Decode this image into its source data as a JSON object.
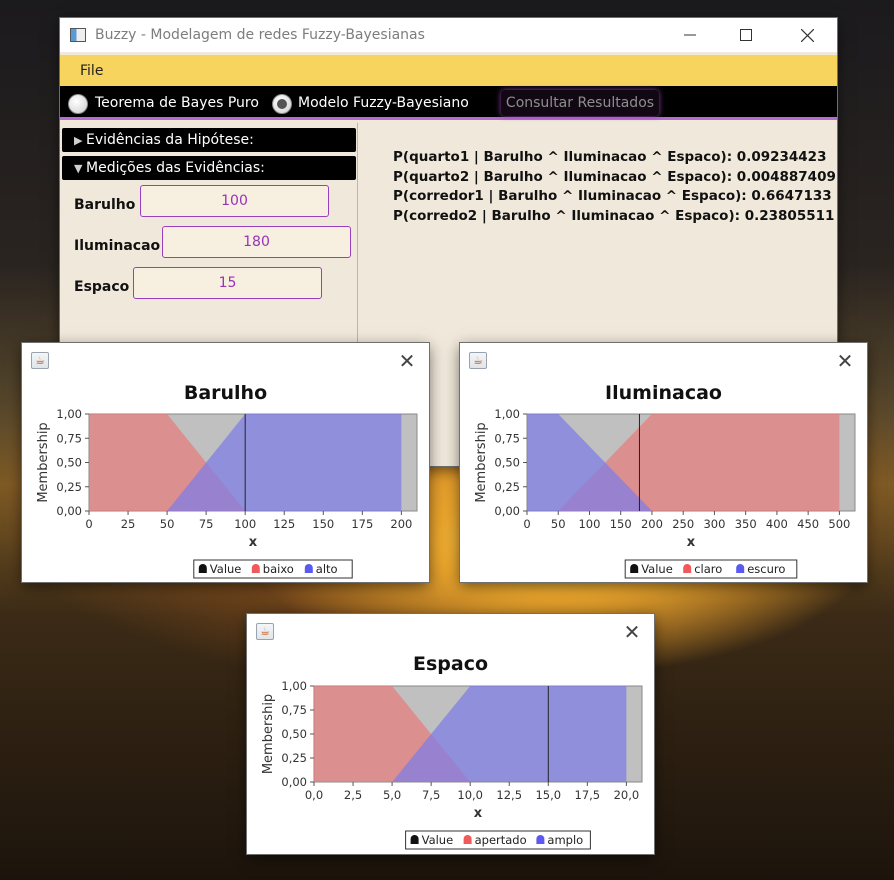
{
  "main_window": {
    "title": "Buzzy - Modelagem de redes Fuzzy-Bayesianas",
    "menu": {
      "file_label": "File"
    },
    "toolbar": {
      "radio_bayes_label": "Teorema de Bayes Puro",
      "radio_fuzzy_label": "Modelo Fuzzy-Bayesiano",
      "selected_mode": "Modelo Fuzzy-Bayesiano",
      "consult_button_label": "Consultar Resultados"
    },
    "accordion": {
      "hypothesis_label": "Evidências da Hipótese:",
      "measurements_label": "Medições das Evidências:"
    },
    "fields": [
      {
        "label": "Barulho",
        "value": "100"
      },
      {
        "label": "Iluminacao",
        "value": "180"
      },
      {
        "label": "Espaco",
        "value": "15"
      }
    ],
    "results": [
      "P(quarto1 | Barulho ^ Iluminacao ^ Espaco): 0.09234423",
      "P(quarto2 | Barulho ^ Iluminacao ^ Espaco): 0.004887409",
      "P(corredor1 | Barulho ^ Iluminacao ^ Espaco): 0.6647133",
      "P(corredo2 | Barulho ^ Iluminacao ^ Espaco): 0.23805511"
    ]
  },
  "colors": {
    "menubar": "#f7d45e",
    "toolbar": "#000000",
    "accent": "#9a32b8",
    "set_red": "#e87a7a",
    "set_blue": "#7a7ae8",
    "plot_bg": "#c0c0c0"
  },
  "chart_data": [
    {
      "type": "area",
      "title": "Barulho",
      "xlabel": "x",
      "ylabel": "Membership",
      "xlim": [
        0,
        210
      ],
      "ylim": [
        0,
        1
      ],
      "xticks": [
        "0",
        "25",
        "50",
        "75",
        "100",
        "125",
        "150",
        "175",
        "200"
      ],
      "xtick_values": [
        0,
        25,
        50,
        75,
        100,
        125,
        150,
        175,
        200
      ],
      "yticks": [
        "0,00",
        "0,25",
        "0,50",
        "0,75",
        "1,00"
      ],
      "value_marker": 100,
      "legend": {
        "value_label": "Value",
        "set1_label": "baixo",
        "set2_label": "alto"
      },
      "series": [
        {
          "name": "baixo",
          "color": "#e87a7a",
          "x": [
            0,
            50,
            100
          ],
          "y": [
            1,
            1,
            0
          ]
        },
        {
          "name": "alto",
          "color": "#7a7ae8",
          "x": [
            50,
            100,
            200
          ],
          "y": [
            0,
            1,
            1
          ]
        }
      ]
    },
    {
      "type": "area",
      "title": "Iluminacao",
      "xlabel": "x",
      "ylabel": "Membership",
      "xlim": [
        0,
        525
      ],
      "ylim": [
        0,
        1
      ],
      "xticks": [
        "0",
        "50",
        "100",
        "150",
        "200",
        "250",
        "300",
        "350",
        "400",
        "450",
        "500"
      ],
      "xtick_values": [
        0,
        50,
        100,
        150,
        200,
        250,
        300,
        350,
        400,
        450,
        500
      ],
      "yticks": [
        "0,00",
        "0,25",
        "0,50",
        "0,75",
        "1,00"
      ],
      "value_marker": 180,
      "legend": {
        "value_label": "Value",
        "set1_label": "claro",
        "set2_label": "escuro"
      },
      "series": [
        {
          "name": "claro",
          "color": "#e87a7a",
          "x": [
            50,
            200,
            500
          ],
          "y": [
            0,
            1,
            1
          ]
        },
        {
          "name": "escuro",
          "color": "#7a7ae8",
          "x": [
            0,
            50,
            200
          ],
          "y": [
            1,
            1,
            0
          ]
        }
      ]
    },
    {
      "type": "area",
      "title": "Espaco",
      "xlabel": "x",
      "ylabel": "Membership",
      "xlim": [
        0,
        21
      ],
      "ylim": [
        0,
        1
      ],
      "xticks": [
        "0,0",
        "2,5",
        "5,0",
        "7,5",
        "10,0",
        "12,5",
        "15,0",
        "17,5",
        "20,0"
      ],
      "xtick_values": [
        0,
        2.5,
        5,
        7.5,
        10,
        12.5,
        15,
        17.5,
        20
      ],
      "yticks": [
        "0,00",
        "0,25",
        "0,50",
        "0,75",
        "1,00"
      ],
      "value_marker": 15,
      "legend": {
        "value_label": "Value",
        "set1_label": "apertado",
        "set2_label": "amplo"
      },
      "series": [
        {
          "name": "apertado",
          "color": "#e87a7a",
          "x": [
            0,
            5,
            10
          ],
          "y": [
            1,
            1,
            0
          ]
        },
        {
          "name": "amplo",
          "color": "#7a7ae8",
          "x": [
            5,
            10,
            20
          ],
          "y": [
            0,
            1,
            1
          ]
        }
      ]
    }
  ]
}
